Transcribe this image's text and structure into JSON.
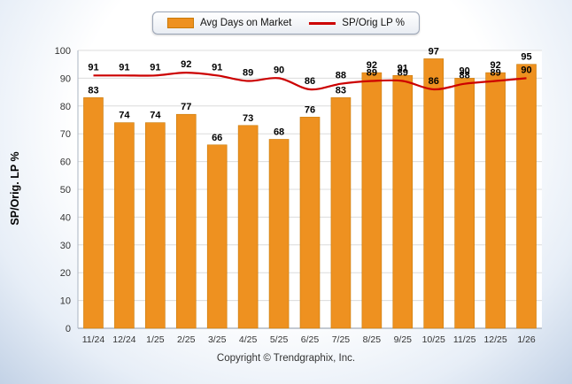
{
  "legend": {
    "bar_label": "Avg Days on Market",
    "line_label": "SP/Orig LP %"
  },
  "ylabel": "SP/Orig. LP %",
  "footer": "Copyright © Trendgraphix, Inc.",
  "colors": {
    "bar": "#EE9120",
    "bar_border": "#c97a08",
    "line": "#CC0000",
    "grid": "#dcdcdc",
    "axis": "#8a96a6"
  },
  "chart_data": {
    "type": "bar",
    "subtype": "bar+line combo",
    "categories": [
      "11/24",
      "12/24",
      "1/25",
      "2/25",
      "3/25",
      "4/25",
      "5/25",
      "6/25",
      "7/25",
      "8/25",
      "9/25",
      "10/25",
      "11/25",
      "12/25",
      "1/26"
    ],
    "series": [
      {
        "name": "Avg Days on Market",
        "kind": "bar",
        "color": "#EE9120",
        "values": [
          83,
          74,
          74,
          77,
          66,
          73,
          68,
          76,
          83,
          92,
          91,
          97,
          90,
          92,
          95
        ]
      },
      {
        "name": "SP/Orig LP %",
        "kind": "line",
        "color": "#CC0000",
        "values": [
          91,
          91,
          91,
          92,
          91,
          89,
          90,
          86,
          88,
          89,
          89,
          86,
          88,
          89,
          90
        ]
      }
    ],
    "title": "",
    "xlabel": "",
    "ylabel": "SP/Orig. LP %",
    "ylim": [
      0,
      100
    ],
    "yticks": [
      0,
      10,
      20,
      30,
      40,
      50,
      60,
      70,
      80,
      90,
      100
    ],
    "grid": true,
    "legend_position": "top",
    "value_labels": true
  }
}
